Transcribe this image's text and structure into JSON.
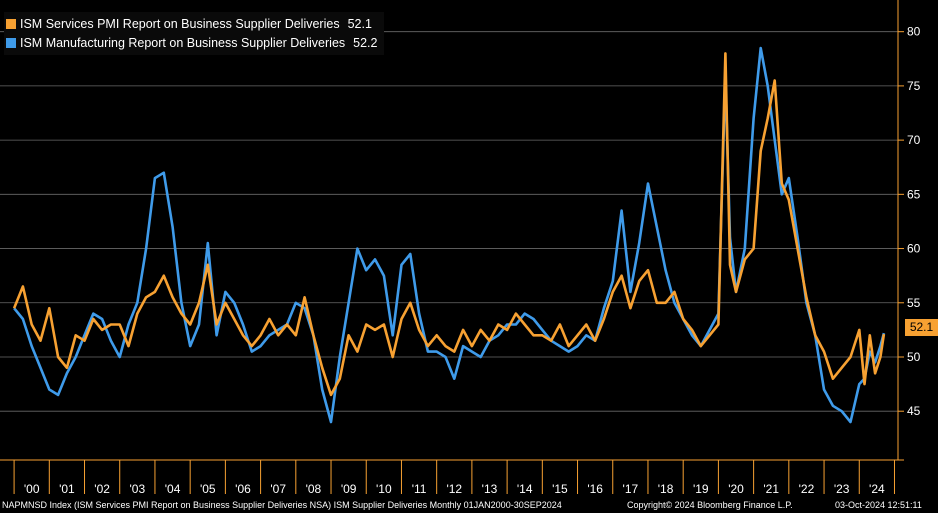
{
  "chart_data": {
    "type": "line",
    "title": "",
    "xlabel": "",
    "ylabel": "",
    "x": [
      2000.0,
      2000.25,
      2000.5,
      2000.75,
      2001.0,
      2001.25,
      2001.5,
      2001.75,
      2002.0,
      2002.25,
      2002.5,
      2002.75,
      2003.0,
      2003.25,
      2003.5,
      2003.75,
      2004.0,
      2004.25,
      2004.5,
      2004.75,
      2005.0,
      2005.25,
      2005.5,
      2005.75,
      2006.0,
      2006.25,
      2006.5,
      2006.75,
      2007.0,
      2007.25,
      2007.5,
      2007.75,
      2008.0,
      2008.25,
      2008.5,
      2008.75,
      2009.0,
      2009.25,
      2009.5,
      2009.75,
      2010.0,
      2010.25,
      2010.5,
      2010.75,
      2011.0,
      2011.25,
      2011.5,
      2011.75,
      2012.0,
      2012.25,
      2012.5,
      2012.75,
      2013.0,
      2013.25,
      2013.5,
      2013.75,
      2014.0,
      2014.25,
      2014.5,
      2014.75,
      2015.0,
      2015.25,
      2015.5,
      2015.75,
      2016.0,
      2016.25,
      2016.5,
      2016.75,
      2017.0,
      2017.25,
      2017.5,
      2017.75,
      2018.0,
      2018.25,
      2018.5,
      2018.75,
      2019.0,
      2019.25,
      2019.5,
      2019.75,
      2020.0,
      2020.2,
      2020.33,
      2020.5,
      2020.75,
      2021.0,
      2021.2,
      2021.4,
      2021.6,
      2021.8,
      2022.0,
      2022.25,
      2022.5,
      2022.75,
      2023.0,
      2023.25,
      2023.5,
      2023.75,
      2024.0,
      2024.15,
      2024.3,
      2024.45,
      2024.6,
      2024.7
    ],
    "series": [
      {
        "name": "ISM Services PMI Report on Business Supplier Deliveries",
        "color": "#f7a132",
        "values": [
          54.5,
          56.5,
          53.0,
          51.5,
          54.5,
          50.0,
          49.0,
          52.0,
          51.5,
          53.5,
          52.5,
          53.0,
          53.0,
          51.0,
          54.0,
          55.5,
          56.0,
          57.5,
          55.5,
          54.0,
          53.0,
          55.0,
          58.5,
          53.0,
          55.0,
          53.5,
          52.0,
          51.0,
          52.0,
          53.5,
          52.0,
          53.0,
          52.0,
          55.5,
          52.0,
          49.0,
          46.5,
          48.0,
          52.0,
          50.5,
          53.0,
          52.5,
          53.0,
          50.0,
          53.5,
          55.0,
          52.5,
          51.0,
          52.0,
          51.0,
          50.5,
          52.5,
          51.0,
          52.5,
          51.5,
          53.0,
          52.5,
          54.0,
          53.0,
          52.0,
          52.0,
          51.5,
          53.0,
          51.0,
          52.0,
          53.0,
          51.5,
          53.5,
          56.0,
          57.5,
          54.5,
          57.0,
          58.0,
          55.0,
          55.0,
          56.0,
          53.5,
          52.5,
          51.0,
          52.0,
          53.0,
          78.0,
          58.5,
          56.0,
          59.0,
          60.0,
          69.0,
          72.0,
          75.5,
          66.0,
          64.5,
          60.0,
          55.5,
          52.0,
          50.5,
          48.0,
          49.0,
          50.0,
          52.5,
          47.5,
          52.0,
          48.5,
          50.0,
          52.1
        ]
      },
      {
        "name": "ISM Manufacturing Report on Business Supplier Deliveries",
        "color": "#3f9bea",
        "values": [
          54.5,
          53.5,
          51.0,
          49.0,
          47.0,
          46.5,
          48.5,
          50.0,
          52.0,
          54.0,
          53.5,
          51.5,
          50.0,
          53.0,
          55.0,
          60.0,
          66.5,
          67.0,
          62.0,
          55.0,
          51.0,
          53.0,
          60.5,
          52.0,
          56.0,
          55.0,
          53.0,
          50.5,
          51.0,
          52.0,
          52.5,
          53.0,
          55.0,
          54.5,
          52.0,
          47.0,
          44.0,
          50.0,
          55.0,
          60.0,
          58.0,
          59.0,
          57.5,
          52.0,
          58.5,
          59.5,
          54.0,
          50.5,
          50.5,
          50.0,
          48.0,
          51.0,
          50.5,
          50.0,
          51.5,
          52.0,
          53.0,
          53.0,
          54.0,
          53.5,
          52.5,
          51.5,
          51.0,
          50.5,
          51.0,
          52.0,
          51.5,
          54.5,
          57.0,
          63.5,
          56.0,
          60.5,
          66.0,
          62.0,
          58.0,
          55.0,
          53.5,
          52.0,
          51.0,
          52.5,
          54.0,
          76.0,
          61.0,
          56.0,
          60.0,
          72.0,
          78.5,
          75.0,
          70.0,
          65.0,
          66.5,
          61.0,
          55.0,
          52.0,
          47.0,
          45.5,
          45.0,
          44.0,
          47.5,
          48.0,
          50.5,
          49.5,
          51.0,
          52.2
        ]
      }
    ],
    "xlim": [
      1999.6,
      2025.1
    ],
    "ylim": [
      40.5,
      82.0
    ],
    "yticks": [
      45,
      50,
      55,
      60,
      65,
      70,
      75,
      80
    ],
    "ytick_labels": [
      "45",
      "50",
      "55",
      "60",
      "65",
      "70",
      "75",
      "80"
    ],
    "xticks": [
      2000.5,
      2001.5,
      2002.5,
      2003.5,
      2004.5,
      2005.5,
      2006.5,
      2007.5,
      2008.5,
      2009.5,
      2010.5,
      2011.5,
      2012.5,
      2013.5,
      2014.5,
      2015.5,
      2016.5,
      2017.5,
      2018.5,
      2019.5,
      2020.5,
      2021.5,
      2022.5,
      2023.5,
      2024.5
    ],
    "xtick_labels": [
      "'00",
      "'01",
      "'02",
      "'03",
      "'04",
      "'05",
      "'06",
      "'07",
      "'08",
      "'09",
      "'10",
      "'11",
      "'12",
      "'13",
      "'14",
      "'15",
      "'16",
      "'17",
      "'18",
      "'19",
      "'20",
      "'21",
      "'22",
      "'23",
      "'24"
    ],
    "grid": true,
    "legend_position": "top-left"
  },
  "legend": [
    {
      "label": "ISM Services PMI Report on Business Supplier Deliveries",
      "value": "52.1",
      "color": "#f7a132"
    },
    {
      "label": "ISM Manufacturing Report on Business Supplier Deliveries",
      "value": "52.2",
      "color": "#3f9bea"
    }
  ],
  "last_value_badge": "52.1",
  "footer": {
    "left": "NAPMNSD Index (ISM Services PMI Report on Business Supplier Deliveries NSA) ISM Supplier Deliveries  Monthly 01JAN2000-30SEP2024",
    "middle": "Copyright© 2024 Bloomberg Finance L.P.",
    "right": "03-Oct-2024 12:51:11"
  }
}
